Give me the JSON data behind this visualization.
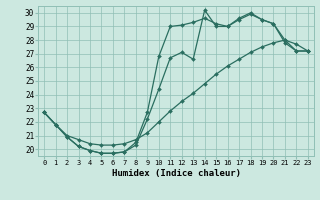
{
  "xlabel": "Humidex (Indice chaleur)",
  "bg_color": "#cce8e0",
  "grid_color": "#90bfb5",
  "line_color": "#2a6e60",
  "xlim": [
    -0.5,
    23.5
  ],
  "ylim": [
    19.5,
    30.5
  ],
  "xticks": [
    0,
    1,
    2,
    3,
    4,
    5,
    6,
    7,
    8,
    9,
    10,
    11,
    12,
    13,
    14,
    15,
    16,
    17,
    18,
    19,
    20,
    21,
    22,
    23
  ],
  "yticks": [
    20,
    21,
    22,
    23,
    24,
    25,
    26,
    27,
    28,
    29,
    30
  ],
  "line1_x": [
    0,
    1,
    2,
    3,
    4,
    5,
    6,
    7,
    8,
    9,
    10,
    11,
    12,
    13,
    14,
    15,
    16,
    17,
    18,
    19,
    20,
    21,
    22,
    23
  ],
  "line1_y": [
    22.7,
    21.8,
    20.9,
    20.2,
    19.9,
    19.7,
    19.7,
    19.8,
    20.3,
    22.2,
    24.4,
    26.7,
    27.1,
    26.6,
    30.2,
    29.0,
    29.0,
    29.5,
    29.9,
    29.5,
    29.2,
    27.8,
    27.2,
    27.2
  ],
  "line2_x": [
    0,
    1,
    2,
    3,
    4,
    5,
    6,
    7,
    8,
    9,
    10,
    11,
    12,
    13,
    14,
    15,
    16,
    17,
    18,
    19,
    20,
    21,
    22,
    23
  ],
  "line2_y": [
    22.7,
    21.8,
    20.9,
    20.2,
    19.9,
    19.7,
    19.7,
    19.8,
    20.5,
    22.7,
    26.8,
    29.0,
    29.1,
    29.3,
    29.6,
    29.2,
    29.0,
    29.6,
    30.0,
    29.5,
    29.2,
    28.0,
    27.2,
    27.2
  ],
  "line3_x": [
    0,
    1,
    2,
    3,
    4,
    5,
    6,
    7,
    8,
    9,
    10,
    11,
    12,
    13,
    14,
    15,
    16,
    17,
    18,
    19,
    20,
    21,
    22,
    23
  ],
  "line3_y": [
    22.7,
    21.8,
    21.0,
    20.7,
    20.4,
    20.3,
    20.3,
    20.4,
    20.7,
    21.2,
    22.0,
    22.8,
    23.5,
    24.1,
    24.8,
    25.5,
    26.1,
    26.6,
    27.1,
    27.5,
    27.8,
    28.0,
    27.7,
    27.2
  ],
  "marker": "D",
  "marker_size": 2,
  "linewidth": 0.9
}
